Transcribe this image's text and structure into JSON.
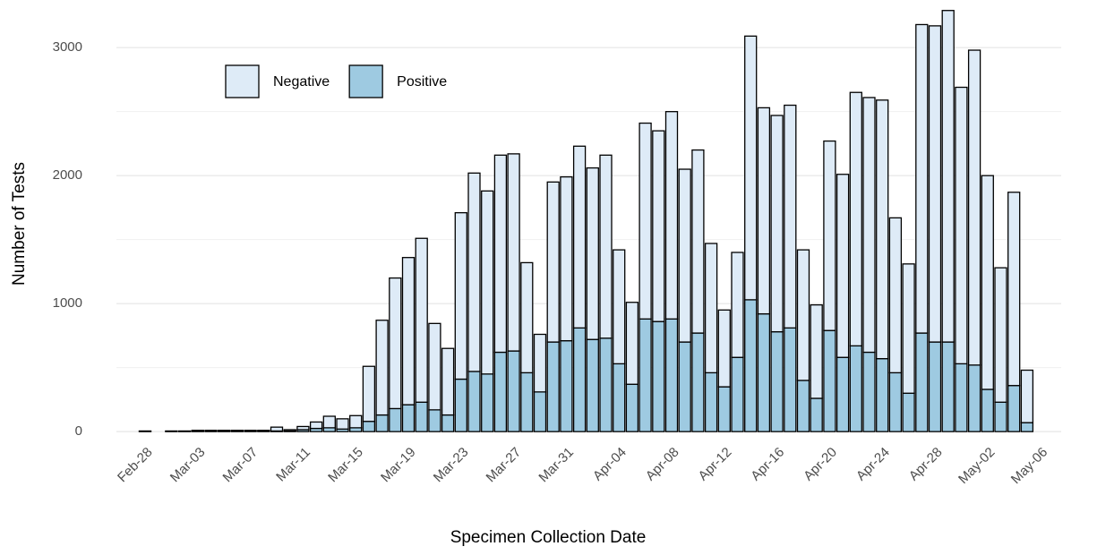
{
  "chart_data": {
    "type": "stacked_bar",
    "x_label": "Specimen Collection Date",
    "y_label": "Number of Tests",
    "categories": [
      "Feb-28",
      null,
      null,
      null,
      "Mar-03",
      null,
      null,
      null,
      "Mar-07",
      null,
      null,
      null,
      "Mar-11",
      null,
      null,
      null,
      "Mar-15",
      null,
      null,
      null,
      "Mar-19",
      null,
      null,
      null,
      "Mar-23",
      null,
      null,
      null,
      "Mar-27",
      null,
      null,
      null,
      "Mar-31",
      null,
      null,
      null,
      "Apr-04",
      null,
      null,
      null,
      "Apr-08",
      null,
      null,
      null,
      "Apr-12",
      null,
      null,
      null,
      "Apr-16",
      null,
      null,
      null,
      "Apr-20",
      null,
      null,
      null,
      "Apr-24",
      null,
      null,
      null,
      "Apr-28",
      null,
      null,
      null,
      "May-02",
      null,
      null,
      null,
      "May-06"
    ],
    "series": [
      {
        "name": "Positive",
        "color": "#9ecae1",
        "values": [
          2,
          null,
          2,
          2,
          5,
          5,
          5,
          5,
          5,
          5,
          5,
          5,
          15,
          25,
          30,
          20,
          30,
          80,
          130,
          180,
          210,
          230,
          170,
          130,
          410,
          470,
          450,
          620,
          630,
          460,
          310,
          700,
          710,
          810,
          720,
          730,
          530,
          370,
          880,
          860,
          880,
          700,
          770,
          460,
          350,
          580,
          1030,
          920,
          780,
          810,
          400,
          260,
          790,
          580,
          670,
          620,
          570,
          460,
          300,
          770,
          700,
          700,
          530,
          520,
          330,
          230,
          360,
          70,
          null
        ]
      },
      {
        "name": "Negative",
        "color": "#deebf7",
        "values": [
          3,
          null,
          3,
          3,
          5,
          5,
          5,
          5,
          5,
          5,
          30,
          10,
          25,
          50,
          90,
          80,
          95,
          430,
          740,
          1020,
          1150,
          1280,
          675,
          520,
          1300,
          1550,
          1430,
          1540,
          1540,
          860,
          450,
          1250,
          1280,
          1420,
          1340,
          1430,
          890,
          640,
          1530,
          1490,
          1620,
          1350,
          1430,
          1010,
          600,
          820,
          2060,
          1610,
          1690,
          1740,
          1020,
          730,
          1480,
          1430,
          1980,
          1990,
          2020,
          1210,
          1010,
          2410,
          2470,
          2590,
          2160,
          2460,
          1670,
          1050,
          1510,
          410,
          null
        ]
      }
    ],
    "legend_order": [
      "Negative",
      "Positive"
    ],
    "ylim": [
      -80,
      3330
    ],
    "yticks": [
      0,
      1000,
      2000,
      3000
    ],
    "y_minor_ticks": [
      500,
      1500,
      2500
    ],
    "grid": true,
    "legend_position": "top-left"
  }
}
